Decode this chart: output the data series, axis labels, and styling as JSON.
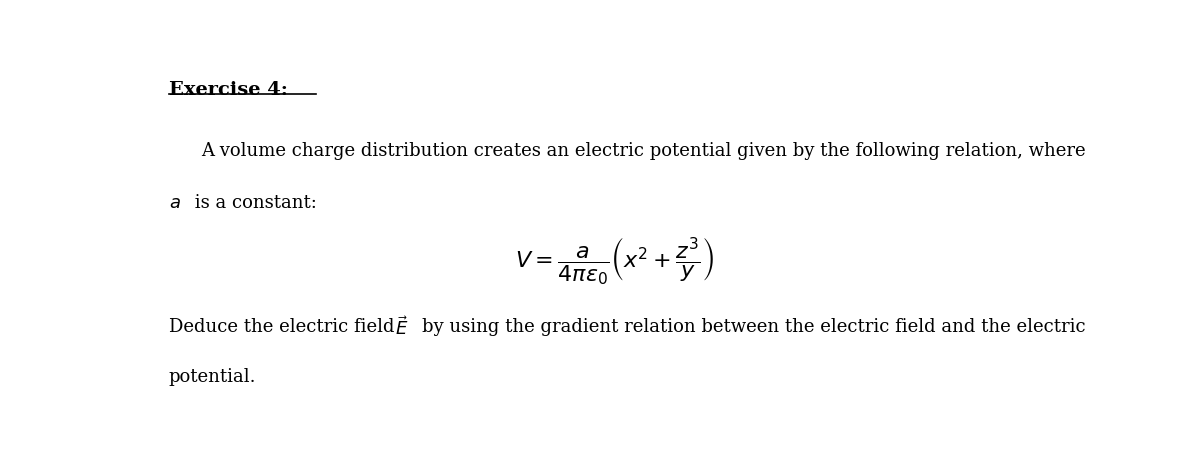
{
  "title": "Exercise 4:",
  "bg_color": "#ffffff",
  "text_color": "#000000",
  "fig_width": 12.0,
  "fig_height": 4.66,
  "dpi": 100,
  "para1": "A volume charge distribution creates an electric potential given by the following relation, where",
  "para1b": " is a constant:",
  "equation": "$V = \\dfrac{a}{4\\pi\\varepsilon_0}\\left(x^2 + \\dfrac{z^3}{y}\\right)$",
  "para2_pre": "Deduce the electric field ",
  "para2_Evec": "$\\vec{E}$",
  "para2_post": " by using the gradient relation between the electric field and the electric",
  "para2c": "potential."
}
